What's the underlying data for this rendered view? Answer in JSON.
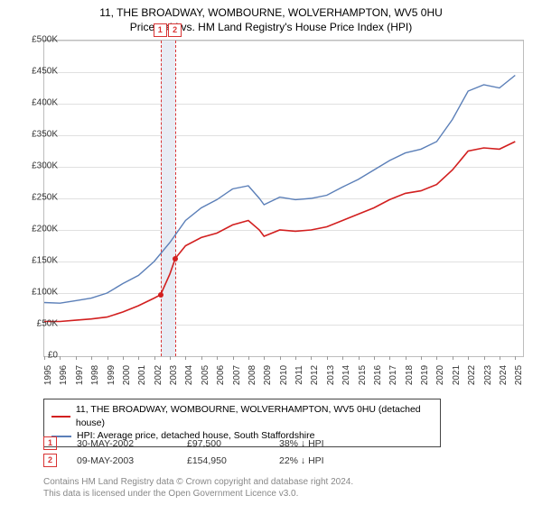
{
  "title": {
    "line1": "11, THE BROADWAY, WOMBOURNE, WOLVERHAMPTON, WV5 0HU",
    "line2": "Price paid vs. HM Land Registry's House Price Index (HPI)",
    "fontsize": 12
  },
  "chart": {
    "type": "line",
    "background_color": "#ffffff",
    "grid_color": "#e0e0e0",
    "border_color": "#bdbdbd",
    "xlim": [
      1995,
      2025.5
    ],
    "ylim": [
      0,
      500000
    ],
    "ytick_step": 50000,
    "yticks": [
      "£0",
      "£50K",
      "£100K",
      "£150K",
      "£200K",
      "£250K",
      "£300K",
      "£350K",
      "£400K",
      "£450K",
      "£500K"
    ],
    "xticks": [
      1995,
      1996,
      1997,
      1998,
      1999,
      2000,
      2001,
      2002,
      2003,
      2004,
      2005,
      2006,
      2007,
      2008,
      2009,
      2010,
      2011,
      2012,
      2013,
      2014,
      2015,
      2016,
      2017,
      2018,
      2019,
      2020,
      2021,
      2022,
      2023,
      2024,
      2025
    ],
    "highlight_band": {
      "start": 2002.41,
      "end": 2003.35,
      "color": "#e8ecf4"
    },
    "dashed_marks": [
      {
        "x": 2002.41,
        "color": "#d93333"
      },
      {
        "x": 2003.35,
        "color": "#d93333"
      }
    ],
    "series": [
      {
        "name": "property",
        "label": "11, THE BROADWAY, WOMBOURNE, WOLVERHAMPTON, WV5 0HU (detached house)",
        "color": "#d21f1f",
        "line_width": 1.6,
        "data": [
          [
            1995,
            55000
          ],
          [
            1996,
            55000
          ],
          [
            1997,
            57000
          ],
          [
            1998,
            59000
          ],
          [
            1999,
            62000
          ],
          [
            2000,
            70000
          ],
          [
            2001,
            80000
          ],
          [
            2002,
            92000
          ],
          [
            2002.41,
            97500
          ],
          [
            2003,
            130000
          ],
          [
            2003.35,
            154950
          ],
          [
            2004,
            175000
          ],
          [
            2005,
            188000
          ],
          [
            2006,
            195000
          ],
          [
            2007,
            208000
          ],
          [
            2008,
            215000
          ],
          [
            2008.7,
            200000
          ],
          [
            2009,
            190000
          ],
          [
            2010,
            200000
          ],
          [
            2011,
            198000
          ],
          [
            2012,
            200000
          ],
          [
            2013,
            205000
          ],
          [
            2014,
            215000
          ],
          [
            2015,
            225000
          ],
          [
            2016,
            235000
          ],
          [
            2017,
            248000
          ],
          [
            2018,
            258000
          ],
          [
            2019,
            262000
          ],
          [
            2020,
            272000
          ],
          [
            2021,
            295000
          ],
          [
            2022,
            325000
          ],
          [
            2023,
            330000
          ],
          [
            2024,
            328000
          ],
          [
            2025,
            340000
          ]
        ]
      },
      {
        "name": "hpi",
        "label": "HPI: Average price, detached house, South Staffordshire",
        "color": "#5b7fb8",
        "line_width": 1.4,
        "data": [
          [
            1995,
            85000
          ],
          [
            1996,
            84000
          ],
          [
            1997,
            88000
          ],
          [
            1998,
            92000
          ],
          [
            1999,
            100000
          ],
          [
            2000,
            115000
          ],
          [
            2001,
            128000
          ],
          [
            2002,
            150000
          ],
          [
            2003,
            180000
          ],
          [
            2004,
            215000
          ],
          [
            2005,
            235000
          ],
          [
            2006,
            248000
          ],
          [
            2007,
            265000
          ],
          [
            2008,
            270000
          ],
          [
            2008.7,
            250000
          ],
          [
            2009,
            240000
          ],
          [
            2010,
            252000
          ],
          [
            2011,
            248000
          ],
          [
            2012,
            250000
          ],
          [
            2013,
            255000
          ],
          [
            2014,
            268000
          ],
          [
            2015,
            280000
          ],
          [
            2016,
            295000
          ],
          [
            2017,
            310000
          ],
          [
            2018,
            322000
          ],
          [
            2019,
            328000
          ],
          [
            2020,
            340000
          ],
          [
            2021,
            375000
          ],
          [
            2022,
            420000
          ],
          [
            2023,
            430000
          ],
          [
            2024,
            425000
          ],
          [
            2025,
            445000
          ]
        ]
      }
    ],
    "sale_points": [
      {
        "x": 2002.41,
        "y": 97500,
        "marker": "1"
      },
      {
        "x": 2003.35,
        "y": 154950,
        "marker": "2"
      }
    ]
  },
  "legend": {
    "border_color": "#444444",
    "items": [
      {
        "color": "#d21f1f",
        "label": "11, THE BROADWAY, WOMBOURNE, WOLVERHAMPTON, WV5 0HU (detached house)"
      },
      {
        "color": "#5b7fb8",
        "label": "HPI: Average price, detached house, South Staffordshire"
      }
    ]
  },
  "sales": [
    {
      "marker": "1",
      "date": "30-MAY-2002",
      "price": "£97,500",
      "vs_hpi": "38% ↓ HPI"
    },
    {
      "marker": "2",
      "date": "09-MAY-2003",
      "price": "£154,950",
      "vs_hpi": "22% ↓ HPI"
    }
  ],
  "attribution": {
    "line1": "Contains HM Land Registry data © Crown copyright and database right 2024.",
    "line2": "This data is licensed under the Open Government Licence v3.0."
  }
}
